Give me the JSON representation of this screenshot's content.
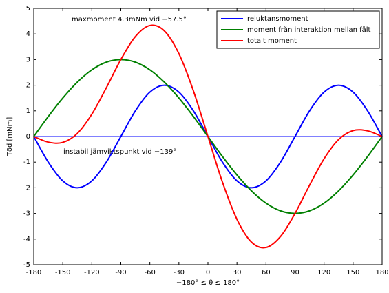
{
  "chart_data": {
    "type": "line",
    "annotations": [
      "maxmoment 4.3mNm vid −57.5°",
      "instabil jämviktspunkt vid −139°"
    ],
    "xlabel": "−180° ≤ θ ≤ 180°",
    "ylabel": "Tδd [mNm]",
    "x": [
      -180,
      -165,
      -150,
      -135,
      -120,
      -105,
      -90,
      -75,
      -60,
      -45,
      -30,
      -15,
      0,
      15,
      30,
      45,
      60,
      75,
      90,
      105,
      120,
      135,
      150,
      165,
      180
    ],
    "series": [
      {
        "name": "reluktansmoment",
        "color": "#0000ff",
        "values": [
          0,
          -1,
          -1.73,
          -2,
          -1.73,
          -1,
          0,
          1,
          1.73,
          2,
          1.73,
          1,
          0,
          -1,
          -1.73,
          -2,
          -1.73,
          -1,
          0,
          1,
          1.73,
          2,
          1.73,
          1,
          0
        ]
      },
      {
        "name": "moment från interaktion mellan fält",
        "color": "#008000",
        "values": [
          0,
          0.78,
          1.5,
          2.12,
          2.6,
          2.9,
          3,
          2.9,
          2.6,
          2.12,
          1.5,
          0.78,
          0,
          -0.78,
          -1.5,
          -2.12,
          -2.6,
          -2.9,
          -3,
          -2.9,
          -2.6,
          -2.12,
          -1.5,
          -0.78,
          0
        ]
      },
      {
        "name": "totalt moment",
        "color": "#ff0000",
        "values": [
          0,
          -0.22,
          -0.23,
          0.12,
          0.87,
          1.9,
          3,
          3.9,
          4.33,
          4.12,
          3.23,
          1.78,
          0,
          -1.78,
          -3.23,
          -4.12,
          -4.33,
          -3.9,
          -3,
          -1.9,
          -0.87,
          -0.12,
          0.23,
          0.22,
          0
        ]
      }
    ],
    "hline": 0,
    "hline_color": "#0000ff",
    "xlim": [
      -180,
      180
    ],
    "xticks": [
      -180,
      -150,
      -120,
      -90,
      -60,
      -30,
      0,
      30,
      60,
      90,
      120,
      150,
      180
    ],
    "ylim": [
      -5,
      5
    ],
    "yticks": [
      -5,
      -4,
      -3,
      -2,
      -1,
      0,
      1,
      2,
      3,
      4,
      5
    ],
    "legend": "top-right",
    "grid": false
  }
}
